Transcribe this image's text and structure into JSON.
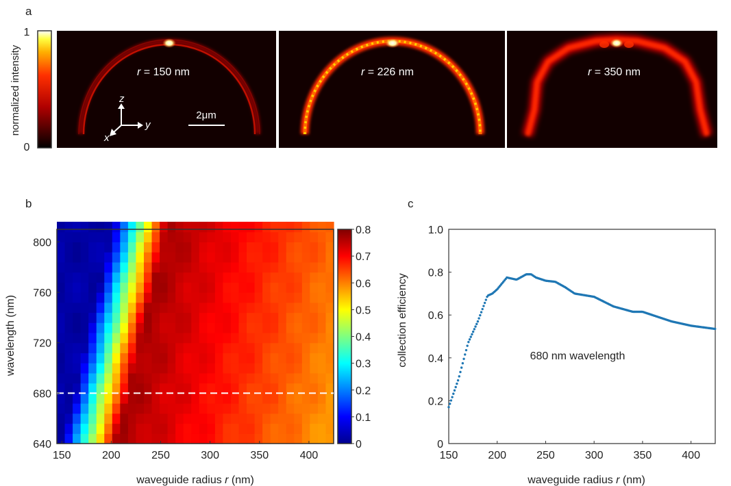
{
  "panel_labels": {
    "a": "a",
    "b": "b",
    "c": "c"
  },
  "panel_a": {
    "colorbar": {
      "label": "normalized intensity",
      "max_label": "1",
      "min_label": "0"
    },
    "images": [
      {
        "r_symbol": "r",
        "label_suffix": " = 150 nm"
      },
      {
        "r_symbol": "r",
        "label_suffix": " = 226 nm"
      },
      {
        "r_symbol": "r",
        "label_suffix": " = 350 nm"
      }
    ],
    "axes": {
      "z": "z",
      "y": "y",
      "x": "x"
    },
    "scale_bar": "2μm"
  },
  "chart_data": [
    {
      "type": "heatmap",
      "xlabel_prefix": "waveguide radius ",
      "xlabel_symbol": "r",
      "xlabel_suffix": " (nm)",
      "ylabel": "wavelength (nm)",
      "x_range": [
        145,
        425
      ],
      "y_range": [
        640,
        810
      ],
      "x_ticks": [
        "150",
        "200",
        "250",
        "300",
        "350",
        "400"
      ],
      "y_ticks": [
        "640",
        "680",
        "720",
        "760",
        "800"
      ],
      "colorbar_range": [
        0,
        0.8
      ],
      "colorbar_ticks": [
        "0",
        "0.1",
        "0.2",
        "0.3",
        "0.4",
        "0.5",
        "0.6",
        "0.7",
        "0.8"
      ],
      "colormap": "jet",
      "reference_line": {
        "wavelength": 680,
        "style": "dashed",
        "color": "#ffffff"
      }
    },
    {
      "type": "scatter",
      "xlabel_prefix": "waveguide radius ",
      "xlabel_symbol": "r",
      "xlabel_suffix": " (nm)",
      "ylabel": "collection efficiency",
      "annotation": "680 nm wavelength",
      "xlim": [
        150,
        425
      ],
      "ylim": [
        0,
        1.0
      ],
      "x_ticks": [
        "150",
        "200",
        "250",
        "300",
        "350",
        "400"
      ],
      "y_ticks": [
        "0",
        "0.2",
        "0.4",
        "0.6",
        "0.8",
        "1.0"
      ],
      "marker_color": "#1f77b4",
      "x": [
        150,
        160,
        170,
        180,
        190,
        195,
        200,
        210,
        220,
        230,
        235,
        240,
        250,
        260,
        270,
        280,
        300,
        320,
        340,
        350,
        360,
        380,
        400,
        425
      ],
      "y": [
        0.17,
        0.3,
        0.47,
        0.57,
        0.69,
        0.7,
        0.72,
        0.775,
        0.765,
        0.79,
        0.79,
        0.775,
        0.76,
        0.755,
        0.73,
        0.7,
        0.685,
        0.64,
        0.615,
        0.615,
        0.6,
        0.57,
        0.55,
        0.535
      ]
    }
  ]
}
